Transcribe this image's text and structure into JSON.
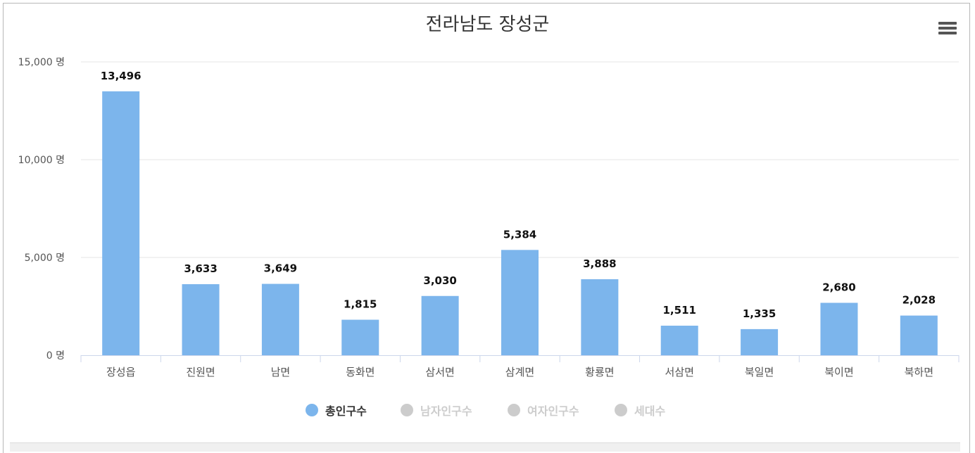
{
  "chart_data": {
    "type": "bar",
    "title": "전라남도 장성군",
    "categories": [
      "장성읍",
      "진원면",
      "남면",
      "동화면",
      "삼서면",
      "삼계면",
      "황룡면",
      "서삼면",
      "북일면",
      "북이면",
      "북하면"
    ],
    "series": [
      {
        "name": "총인구수",
        "values": [
          13496,
          3633,
          3649,
          1815,
          3030,
          5384,
          3888,
          1511,
          1335,
          2680,
          2028
        ],
        "color": "#7cb5ec",
        "visible": true
      }
    ],
    "value_labels": [
      "13,496",
      "3,633",
      "3,649",
      "1,815",
      "3,030",
      "5,384",
      "3,888",
      "1,511",
      "1,335",
      "2,680",
      "2,028"
    ],
    "y_ticks": [
      0,
      5000,
      10000,
      15000
    ],
    "y_tick_labels": [
      "0 명",
      "5,000 명",
      "10,000 명",
      "15,000 명"
    ],
    "ylim": [
      0,
      15000
    ],
    "grid": true,
    "legend_position": "bottom-center"
  },
  "legend": [
    {
      "label": "총인구수",
      "active": true,
      "color": "#7cb5ec",
      "text_color": "#333333"
    },
    {
      "label": "남자인구수",
      "active": false,
      "color": "#cccccc",
      "text_color": "#cccccc"
    },
    {
      "label": "여자인구수",
      "active": false,
      "color": "#cccccc",
      "text_color": "#cccccc"
    },
    {
      "label": "세대수",
      "active": false,
      "color": "#cccccc",
      "text_color": "#cccccc"
    }
  ],
  "menu_icon": "hamburger-menu-icon"
}
